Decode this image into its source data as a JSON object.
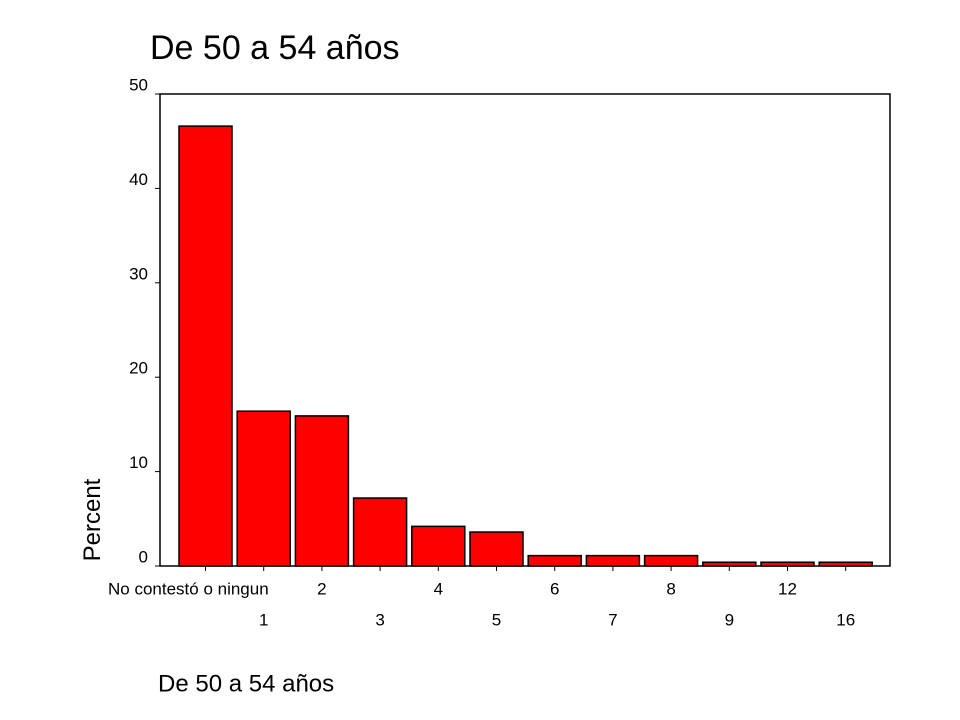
{
  "chart_data": {
    "type": "bar",
    "title": "De 50 a 54 años",
    "xlabel": "De 50 a 54 años",
    "ylabel": "Percent",
    "categories": [
      "No contestó o ningun",
      "1",
      "2",
      "3",
      "4",
      "5",
      "6",
      "7",
      "8",
      "9",
      "12",
      "16"
    ],
    "values": [
      46.6,
      16.4,
      15.9,
      7.2,
      4.2,
      3.6,
      1.1,
      1.1,
      1.1,
      0.4,
      0.4,
      0.4
    ],
    "color": "#ff0000",
    "ylim": [
      0,
      50
    ],
    "yticks": [
      0,
      10,
      20,
      30,
      40,
      50
    ]
  }
}
